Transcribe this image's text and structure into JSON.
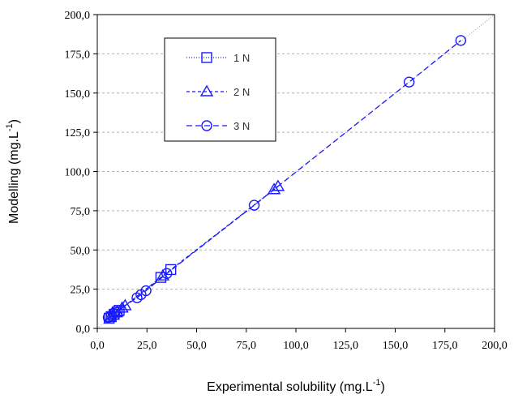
{
  "chart_data": {
    "type": "scatter",
    "xlabel": "Experimental  solubility (mg.L",
    "xlabel_sup": "-1",
    "xlabel_end": ")",
    "ylabel": "Modelling (mg.L",
    "ylabel_sup": "-1",
    "ylabel_end": ")",
    "xlim": [
      0,
      200
    ],
    "ylim": [
      0,
      200
    ],
    "x_ticks": [
      "0,0",
      "25,0",
      "50,0",
      "75,0",
      "100,0",
      "125,0",
      "150,0",
      "175,0",
      "200,0"
    ],
    "y_ticks": [
      "0,0",
      "25,0",
      "50,0",
      "75,0",
      "100,0",
      "125,0",
      "150,0",
      "175,0",
      "200,0"
    ],
    "x_tick_values": [
      0,
      25,
      50,
      75,
      100,
      125,
      150,
      175,
      200
    ],
    "y_tick_values": [
      0,
      25,
      50,
      75,
      100,
      125,
      150,
      175,
      200
    ],
    "grid": "horizontal dashed",
    "legend_position": "top-left",
    "identity_line": true,
    "colors": {
      "series": "#1a1aff",
      "identity": "#999999",
      "grid": "#b0b0b0",
      "axis": "#000000"
    },
    "series": [
      {
        "name": "1 N",
        "marker": "square",
        "line_style": "dotted",
        "points": [
          [
            6.0,
            6.5
          ],
          [
            7.0,
            7.5
          ],
          [
            8.5,
            9.0
          ],
          [
            10.0,
            10.5
          ],
          [
            11.0,
            11.5
          ],
          [
            32.0,
            32.5
          ],
          [
            37.0,
            37.5
          ]
        ]
      },
      {
        "name": "2 N",
        "marker": "triangle",
        "line_style": "dash",
        "points": [
          [
            6.5,
            7.0
          ],
          [
            8.0,
            8.5
          ],
          [
            10.0,
            10.5
          ],
          [
            12.5,
            13.0
          ],
          [
            14.0,
            14.5
          ],
          [
            33.0,
            33.5
          ],
          [
            89.0,
            88.5
          ],
          [
            91.0,
            90.5
          ]
        ]
      },
      {
        "name": "3 N",
        "marker": "circle",
        "line_style": "longdash",
        "points": [
          [
            5.5,
            7.0
          ],
          [
            7.0,
            8.0
          ],
          [
            8.0,
            9.5
          ],
          [
            9.0,
            10.5
          ],
          [
            20.0,
            19.5
          ],
          [
            22.0,
            21.5
          ],
          [
            24.5,
            24.0
          ],
          [
            35.0,
            35.0
          ],
          [
            79.0,
            78.5
          ],
          [
            157.0,
            157.0
          ],
          [
            183.0,
            183.5
          ]
        ]
      }
    ]
  }
}
